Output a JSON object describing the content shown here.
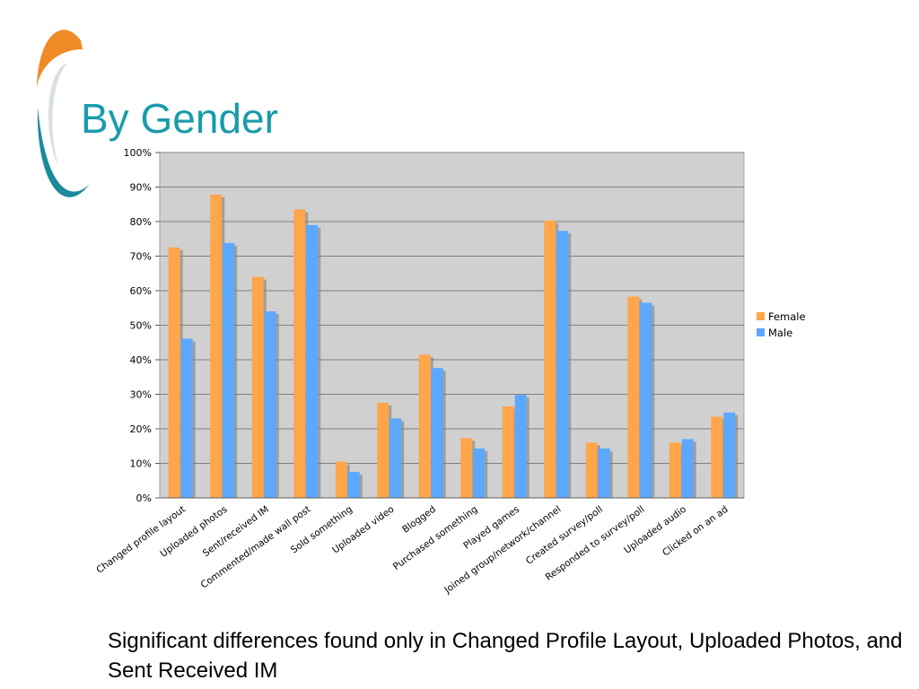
{
  "slide": {
    "title": "By Gender",
    "note": "Significant differences found only in Changed Profile Layout, Uploaded Photos, and Sent Received IM"
  },
  "chart_data": {
    "type": "bar",
    "title": "",
    "xlabel": "",
    "ylabel": "",
    "ylim": [
      0,
      100
    ],
    "y_ticks": [
      "0%",
      "10%",
      "20%",
      "30%",
      "40%",
      "50%",
      "60%",
      "70%",
      "80%",
      "90%",
      "100%"
    ],
    "grid": true,
    "legend_position": "right",
    "categories": [
      "Changed profile layout",
      "Uploaded photos",
      "Sent/received IM",
      "Commented/made wall post",
      "Sold something",
      "Uploaded video",
      "Blogged",
      "Purchased something",
      "Played games",
      "Joined group/network/channel",
      "Created survey/poll",
      "Responded to survey/poll",
      "Uploaded audio",
      "Clicked on an ad"
    ],
    "series": [
      {
        "name": "Female",
        "color": "#ffa54a",
        "values": [
          72.5,
          87.8,
          64,
          83.5,
          10.5,
          27.5,
          41.5,
          17.3,
          26.5,
          80.3,
          16,
          58.3,
          16,
          23.5
        ]
      },
      {
        "name": "Male",
        "color": "#5ca8ff",
        "values": [
          46.1,
          73.8,
          54,
          79,
          7.5,
          23,
          37.6,
          14.3,
          29.8,
          77.3,
          14.3,
          56.5,
          17,
          24.7
        ]
      }
    ]
  },
  "colors": {
    "title": "#1a9bab",
    "plot_background": "#d0d0d0",
    "gridline": "#808080",
    "logo_orange": "#f08a24",
    "logo_teal": "#1b8a9a"
  }
}
